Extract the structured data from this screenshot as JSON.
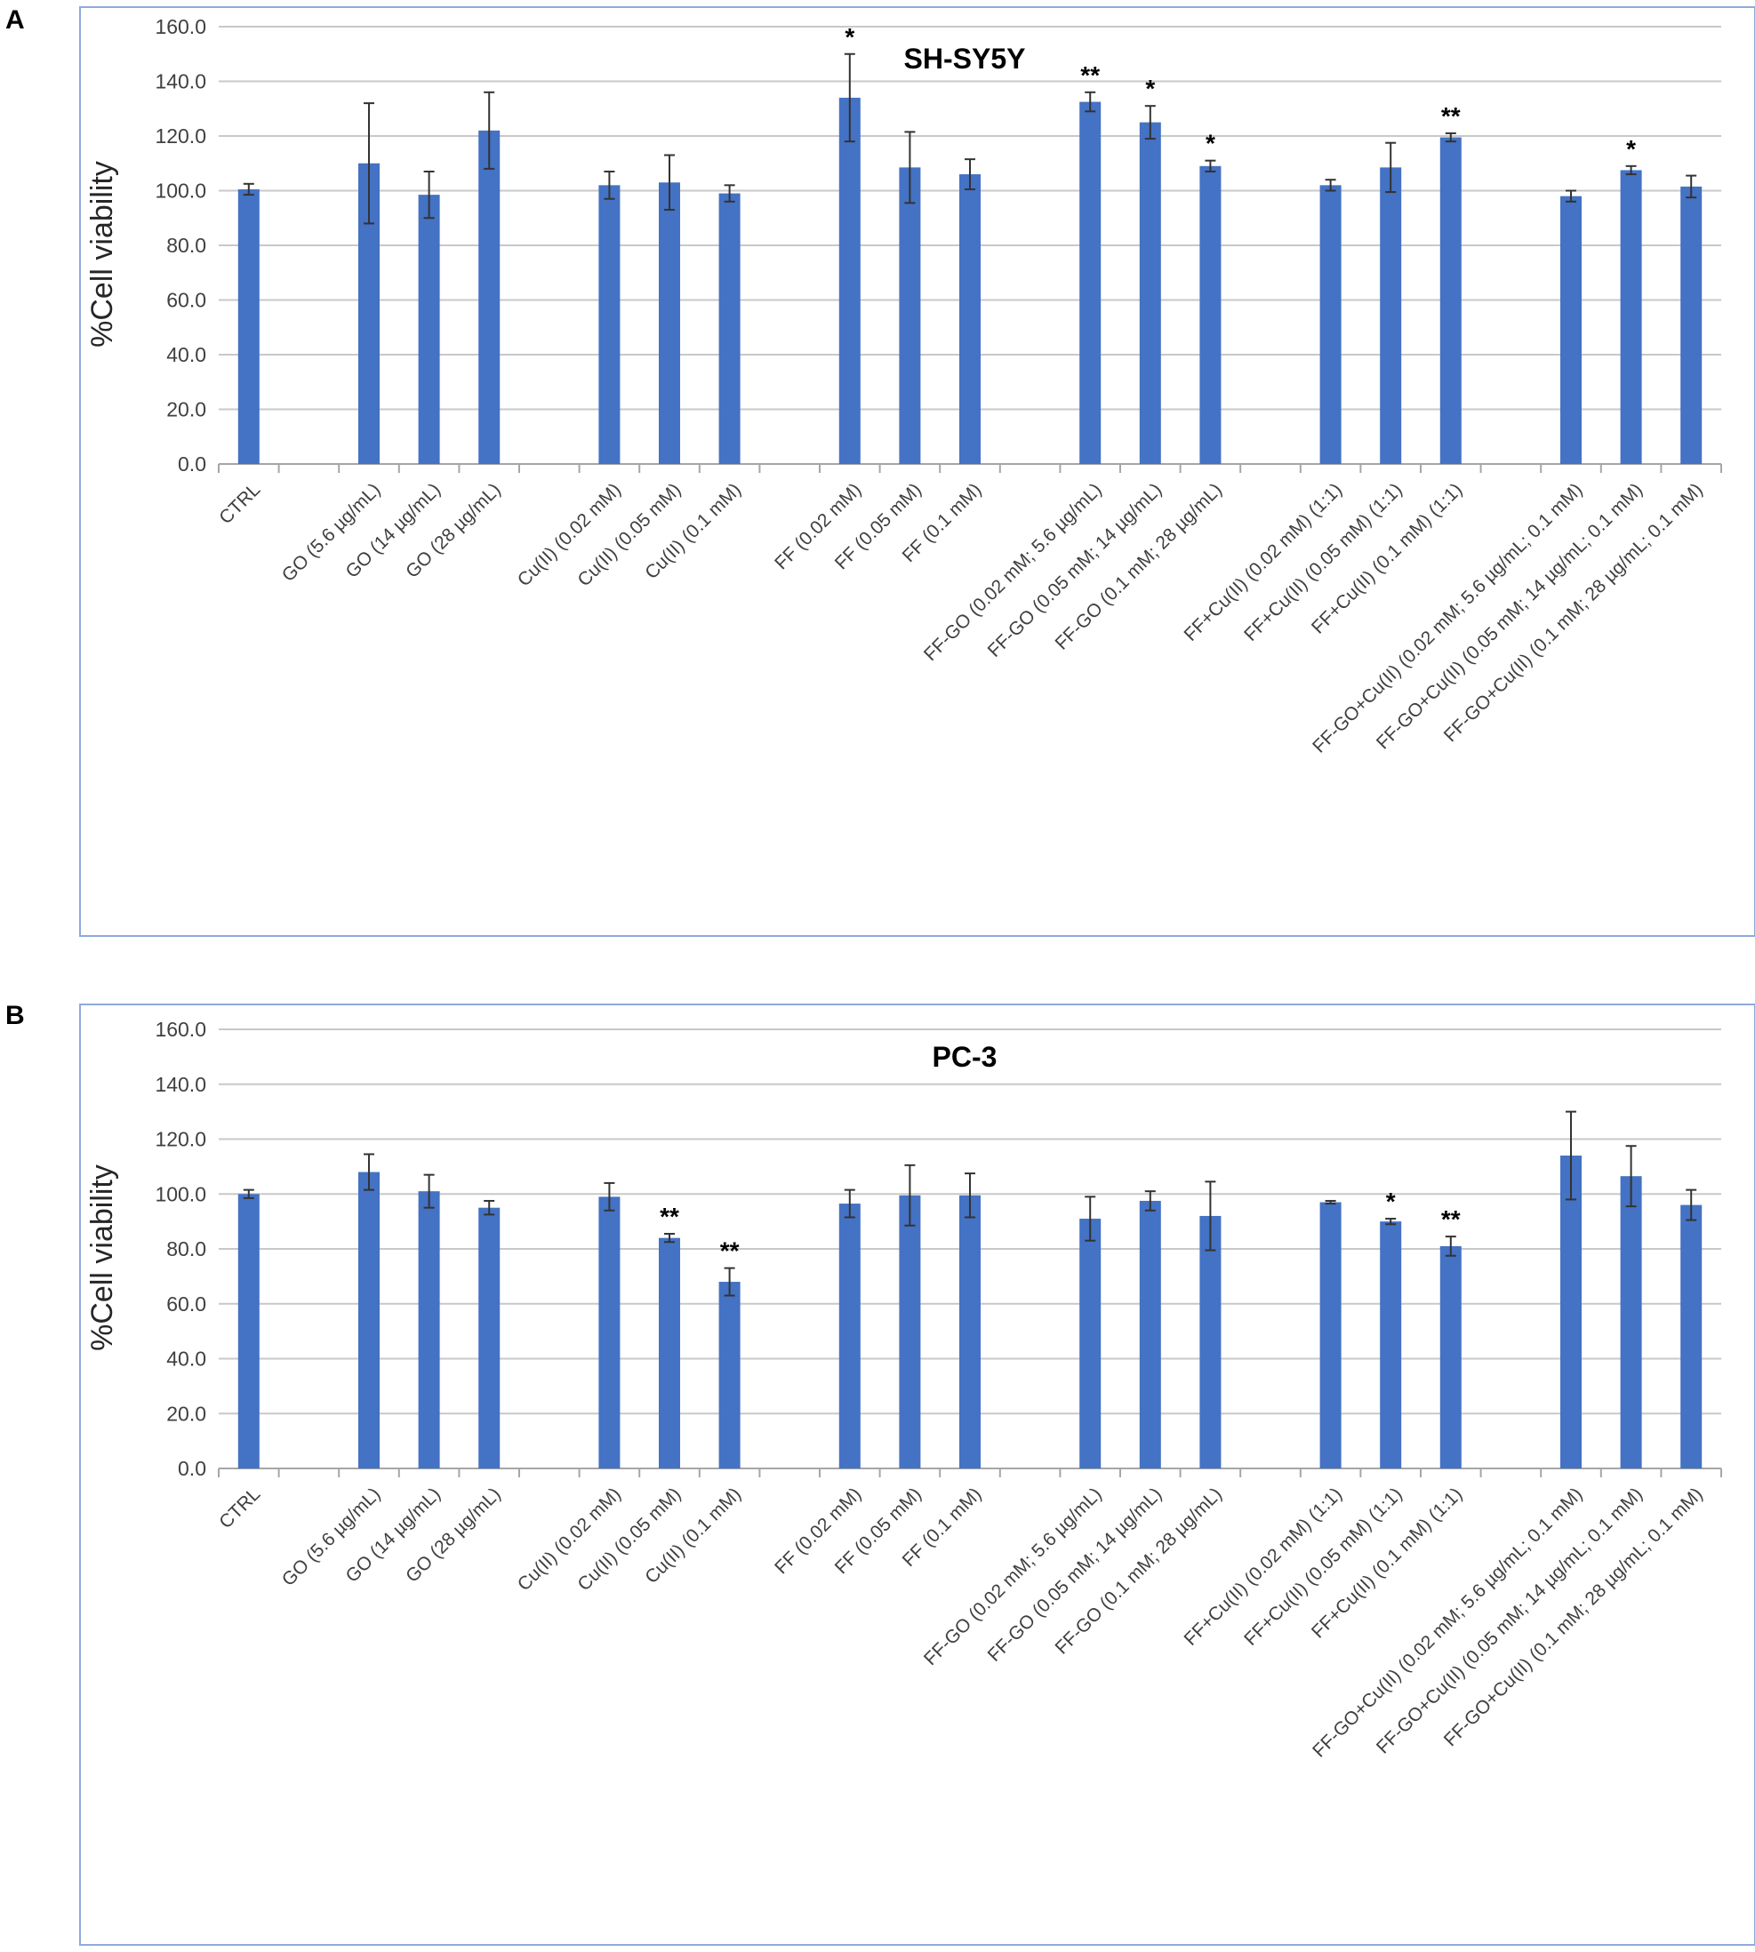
{
  "colors": {
    "bar": "#4472C4",
    "border": "#8EAADB",
    "grid": "#C8C8C8",
    "text": "#404040"
  },
  "chart_data": [
    {
      "panel_label": "A",
      "type": "bar",
      "title": "SH-SY5Y",
      "xlabel": "",
      "ylabel": "%Cell viability",
      "ylim": [
        0,
        160
      ],
      "yticks": [
        "0.0",
        "20.0",
        "40.0",
        "60.0",
        "80.0",
        "100.0",
        "120.0",
        "140.0",
        "160.0"
      ],
      "grid": true,
      "categories": [
        "CTRL",
        "",
        "GO (5.6 µg/mL)",
        "GO (14 µg/mL)",
        "GO (28 µg/mL)",
        "",
        "Cu(II) (0.02 mM)",
        "Cu(II) (0.05 mM)",
        "Cu(II) (0.1 mM)",
        "",
        "FF (0.02 mM)",
        "FF (0.05 mM)",
        "FF (0.1 mM)",
        "",
        "FF-GO (0.02 mM; 5.6 µg/mL)",
        "FF-GO (0.05 mM; 14 µg/mL)",
        "FF-GO (0.1 mM; 28 µg/mL)",
        "",
        "FF+Cu(II) (0.02 mM) (1:1)",
        "FF+Cu(II) (0.05 mM) (1:1)",
        "FF+Cu(II) (0.1 mM) (1:1)",
        "",
        "FF-GO+Cu(II) (0.02 mM; 5.6 µg/mL; 0.1 mM)",
        "FF-GO+Cu(II) (0.05 mM; 14 µg/mL; 0.1 mM)",
        "FF-GO+Cu(II) (0.1 mM; 28 µg/mL; 0.1 mM)"
      ],
      "values": [
        100.5,
        null,
        110,
        98.5,
        122,
        null,
        102,
        103,
        99,
        null,
        134,
        108.5,
        106,
        null,
        132.5,
        125,
        109,
        null,
        102,
        108.5,
        119.5,
        null,
        98,
        107.5,
        101.5
      ],
      "errors": [
        2,
        null,
        22,
        8.5,
        14,
        null,
        5,
        10,
        3,
        null,
        16,
        13,
        5.5,
        null,
        3.5,
        6,
        2,
        null,
        2,
        9,
        1.5,
        null,
        2,
        1.5,
        4
      ],
      "annotations": [
        "",
        "",
        "",
        "",
        "",
        "",
        "",
        "",
        "",
        "",
        "*",
        "",
        "",
        "",
        "**",
        "*",
        "*",
        "",
        "",
        "",
        "**",
        "",
        "",
        "*",
        ""
      ]
    },
    {
      "panel_label": "B",
      "type": "bar",
      "title": "PC-3",
      "xlabel": "",
      "ylabel": "%Cell viability",
      "ylim": [
        0,
        160
      ],
      "yticks": [
        "0.0",
        "20.0",
        "40.0",
        "60.0",
        "80.0",
        "100.0",
        "120.0",
        "140.0",
        "160.0"
      ],
      "grid": true,
      "categories": [
        "CTRL",
        "",
        "GO (5.6 µg/mL)",
        "GO (14 µg/mL)",
        "GO (28 µg/mL)",
        "",
        "Cu(II) (0.02 mM)",
        "Cu(II) (0.05 mM)",
        "Cu(II) (0.1 mM)",
        "",
        "FF (0.02 mM)",
        "FF (0.05 mM)",
        "FF (0.1 mM)",
        "",
        "FF-GO (0.02 mM; 5.6 µg/mL)",
        "FF-GO (0.05 mM; 14 µg/mL)",
        "FF-GO (0.1 mM; 28 µg/mL)",
        "",
        "FF+Cu(II) (0.02 mM) (1:1)",
        "FF+Cu(II) (0.05 mM) (1:1)",
        "FF+Cu(II) (0.1 mM) (1:1)",
        "",
        "FF-GO+Cu(II) (0.02 mM; 5.6 µg/mL; 0.1 mM)",
        "FF-GO+Cu(II) (0.05 mM; 14 µg/mL; 0.1 mM)",
        "FF-GO+Cu(II) (0.1 mM; 28 µg/mL; 0.1 mM)"
      ],
      "values": [
        100,
        null,
        108,
        101,
        95,
        null,
        99,
        84,
        68,
        null,
        96.5,
        99.5,
        99.5,
        null,
        91,
        97.5,
        92,
        null,
        97,
        90,
        81,
        null,
        114,
        106.5,
        96
      ],
      "errors": [
        1.5,
        null,
        6.5,
        6,
        2.5,
        null,
        5,
        1.5,
        5,
        null,
        5,
        11,
        8,
        null,
        8,
        3.5,
        12.5,
        null,
        0.5,
        1,
        3.5,
        null,
        16,
        11,
        5.5
      ],
      "annotations": [
        "",
        "",
        "",
        "",
        "",
        "",
        "",
        "**",
        "**",
        "",
        "",
        "",
        "",
        "",
        "",
        "",
        "",
        "",
        "",
        "*",
        "**",
        "",
        "",
        "",
        ""
      ]
    }
  ]
}
